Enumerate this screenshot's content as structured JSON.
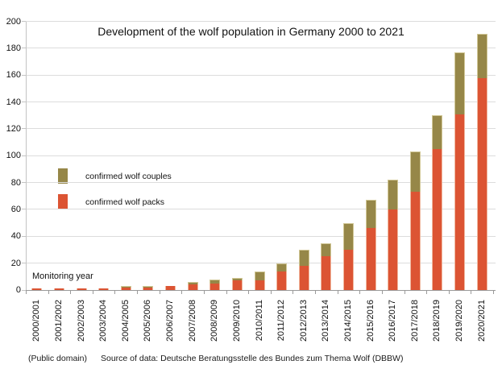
{
  "title": "Development of the wolf population in Germany 2000 to 2021",
  "legend": {
    "couples_label": "confirmed wolf couples",
    "packs_label": "confirmed wolf packs"
  },
  "monitoring_note": "Monitoring year",
  "footer": {
    "license": "(Public domain)",
    "source": "Source of data: Deutsche Beratungsstelle des Bundes zum Thema Wolf (DBBW)"
  },
  "colors": {
    "packs": "#dc5433",
    "couples": "#968748",
    "gridline": "#dcdcdc",
    "axis": "#9a9a9a"
  },
  "chart_data": {
    "type": "bar",
    "stacked": true,
    "title": "Development of the wolf population in Germany 2000 to 2021",
    "xlabel": "Monitoring year",
    "ylabel": "",
    "ylim": [
      0,
      200
    ],
    "ytick_step": 20,
    "grid": true,
    "legend_position": "middle-left",
    "categories": [
      "2000/2001",
      "2001/2002",
      "2002/2003",
      "2003/2004",
      "2004/2005",
      "2005/2006",
      "2006/2007",
      "2007/2008",
      "2008/2009",
      "2009/2010",
      "2010/2011",
      "2011/2012",
      "2012/2013",
      "2013/2014",
      "2014/2015",
      "2015/2016",
      "2016/2017",
      "2017/2018",
      "2018/2019",
      "2019/2020",
      "2020/2021"
    ],
    "series": [
      {
        "name": "confirmed wolf packs",
        "color": "#dc5433",
        "values": [
          1,
          1,
          1,
          1,
          2,
          2,
          3,
          4,
          5,
          7,
          7,
          14,
          18,
          25,
          30,
          46,
          60,
          73,
          105,
          131,
          158
        ]
      },
      {
        "name": "confirmed wolf couples",
        "color": "#968748",
        "values": [
          0,
          0,
          0,
          0,
          1,
          1,
          0,
          2,
          3,
          2,
          7,
          6,
          12,
          10,
          20,
          21,
          22,
          30,
          25,
          46,
          33
        ]
      }
    ]
  }
}
